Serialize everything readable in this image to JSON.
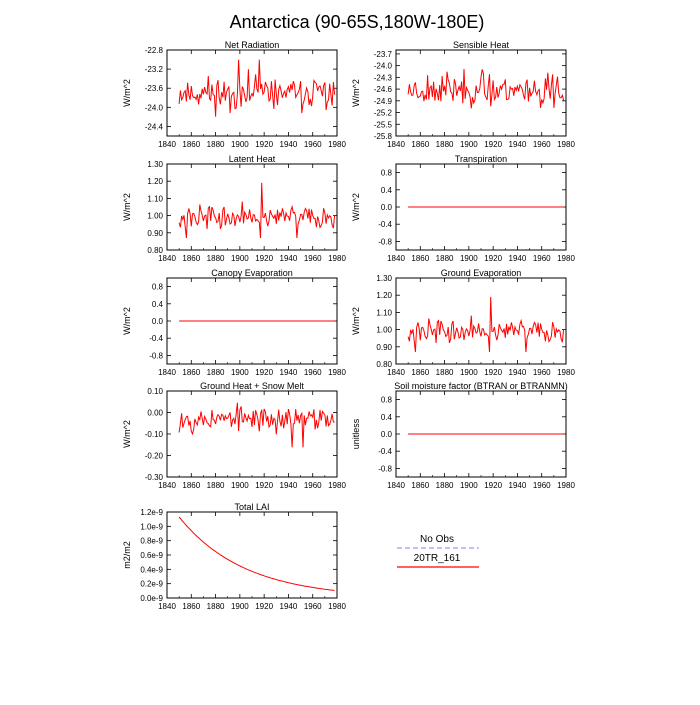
{
  "title": "Antarctica (90-65S,180W-180E)",
  "colors": {
    "model": "#ff0000",
    "obs": "#9999ff",
    "axis": "#000000"
  },
  "legend": {
    "obs_label": "No Obs",
    "model_label": "20TR_161"
  },
  "chart_data": [
    {
      "type": "line",
      "title": "Net Radiation",
      "ylabel": "W/m^2",
      "xlim": [
        1840,
        1980
      ],
      "ylim": [
        -24.6,
        -22.8
      ],
      "yticks": [
        -22.8,
        -23.2,
        -23.6,
        -24.0,
        -24.4
      ],
      "ytick_labels": [
        "-22.8",
        "-23.2",
        "-23.6",
        "-24.0",
        "-24.4"
      ],
      "xticks": [
        1840,
        1860,
        1880,
        1900,
        1920,
        1940,
        1960,
        1980
      ],
      "xtick_labels": [
        "1840",
        "1860",
        "1880",
        "1900",
        "1920",
        "1940",
        "1960",
        "1980"
      ],
      "series": [
        {
          "name": "20TR_161",
          "kind": "noise",
          "mean": -23.7,
          "amp": 0.3,
          "spike": 0.7,
          "seed": 11,
          "start": 1850,
          "end": 1978
        }
      ]
    },
    {
      "type": "line",
      "title": "Sensible Heat",
      "ylabel": "W/m^2",
      "xlim": [
        1840,
        1980
      ],
      "ylim": [
        -25.8,
        -23.6
      ],
      "yticks": [
        -23.7,
        -24.0,
        -24.3,
        -24.6,
        -24.9,
        -25.2,
        -25.5,
        -25.8
      ],
      "ytick_labels": [
        "-23.7",
        "-24.0",
        "-24.3",
        "-24.6",
        "-24.9",
        "-25.2",
        "-25.5",
        "-25.8"
      ],
      "xticks": [
        1840,
        1860,
        1880,
        1900,
        1920,
        1940,
        1960,
        1980
      ],
      "xtick_labels": [
        "1840",
        "1860",
        "1880",
        "1900",
        "1920",
        "1940",
        "1960",
        "1980"
      ],
      "series": [
        {
          "name": "20TR_161",
          "kind": "noise",
          "mean": -24.6,
          "amp": 0.35,
          "spike": 0.8,
          "seed": 23,
          "start": 1850,
          "end": 1978
        }
      ]
    },
    {
      "type": "line",
      "title": "Latent Heat",
      "ylabel": "W/m^2",
      "xlim": [
        1840,
        1980
      ],
      "ylim": [
        0.8,
        1.3
      ],
      "yticks": [
        0.8,
        0.9,
        1.0,
        1.1,
        1.2,
        1.3
      ],
      "ytick_labels": [
        "0.80",
        "0.90",
        "1.00",
        "1.10",
        "1.20",
        "1.30"
      ],
      "xticks": [
        1840,
        1860,
        1880,
        1900,
        1920,
        1940,
        1960,
        1980
      ],
      "xtick_labels": [
        "1840",
        "1860",
        "1880",
        "1900",
        "1920",
        "1940",
        "1960",
        "1980"
      ],
      "series": [
        {
          "name": "20TR_161",
          "kind": "noise",
          "mean": 0.99,
          "amp": 0.055,
          "spike": 0.2,
          "seed": 37,
          "start": 1850,
          "end": 1978
        }
      ]
    },
    {
      "type": "line",
      "title": "Transpiration",
      "ylabel": "W/m^2",
      "xlim": [
        1840,
        1980
      ],
      "ylim": [
        -1.0,
        1.0
      ],
      "yticks": [
        0.8,
        0.4,
        0.0,
        -0.4,
        -0.8
      ],
      "ytick_labels": [
        "0.8",
        "0.4",
        "0.0",
        "-0.4",
        "-0.8"
      ],
      "xticks": [
        1840,
        1860,
        1880,
        1900,
        1920,
        1940,
        1960,
        1980
      ],
      "xtick_labels": [
        "1840",
        "1860",
        "1880",
        "1900",
        "1920",
        "1940",
        "1960",
        "1980"
      ],
      "series": [
        {
          "name": "20TR_161",
          "kind": "const",
          "value": 0.0,
          "start": 1850,
          "end": 1978
        }
      ]
    },
    {
      "type": "line",
      "title": "Canopy Evaporation",
      "ylabel": "W/m^2",
      "xlim": [
        1840,
        1980
      ],
      "ylim": [
        -1.0,
        1.0
      ],
      "yticks": [
        0.8,
        0.4,
        0.0,
        -0.4,
        -0.8
      ],
      "ytick_labels": [
        "0.8",
        "0.4",
        "0.0",
        "-0.4",
        "-0.8"
      ],
      "xticks": [
        1840,
        1860,
        1880,
        1900,
        1920,
        1940,
        1960,
        1980
      ],
      "xtick_labels": [
        "1840",
        "1860",
        "1880",
        "1900",
        "1920",
        "1940",
        "1960",
        "1980"
      ],
      "series": [
        {
          "name": "20TR_161",
          "kind": "const",
          "value": 0.0,
          "start": 1850,
          "end": 1978
        }
      ]
    },
    {
      "type": "line",
      "title": "Ground Evaporation",
      "ylabel": "W/m^2",
      "xlim": [
        1840,
        1980
      ],
      "ylim": [
        0.8,
        1.3
      ],
      "yticks": [
        0.8,
        0.9,
        1.0,
        1.1,
        1.2,
        1.3
      ],
      "ytick_labels": [
        "0.80",
        "0.90",
        "1.00",
        "1.10",
        "1.20",
        "1.30"
      ],
      "xticks": [
        1840,
        1860,
        1880,
        1900,
        1920,
        1940,
        1960,
        1980
      ],
      "xtick_labels": [
        "1840",
        "1860",
        "1880",
        "1900",
        "1920",
        "1940",
        "1960",
        "1980"
      ],
      "series": [
        {
          "name": "20TR_161",
          "kind": "noise",
          "mean": 0.99,
          "amp": 0.055,
          "spike": 0.2,
          "seed": 37,
          "start": 1850,
          "end": 1978
        }
      ]
    },
    {
      "type": "line",
      "title": "Ground Heat + Snow Melt",
      "ylabel": "W/m^2",
      "xlim": [
        1840,
        1980
      ],
      "ylim": [
        -0.3,
        0.1
      ],
      "yticks": [
        0.1,
        0.0,
        -0.1,
        -0.2,
        -0.3
      ],
      "ytick_labels": [
        "0.10",
        "0.00",
        "-0.10",
        "-0.20",
        "-0.30"
      ],
      "xticks": [
        1840,
        1860,
        1880,
        1900,
        1920,
        1940,
        1960,
        1980
      ],
      "xtick_labels": [
        "1840",
        "1860",
        "1880",
        "1900",
        "1920",
        "1940",
        "1960",
        "1980"
      ],
      "series": [
        {
          "name": "20TR_161",
          "kind": "noise",
          "mean": -0.03,
          "amp": 0.05,
          "spike": 0.22,
          "seed": 53,
          "start": 1850,
          "end": 1978
        }
      ]
    },
    {
      "type": "line",
      "title": "Soil moisture factor (BTRAN or BTRANMN)",
      "ylabel": "unitless",
      "xlim": [
        1840,
        1980
      ],
      "ylim": [
        -1.0,
        1.0
      ],
      "yticks": [
        0.8,
        0.4,
        0.0,
        -0.4,
        -0.8
      ],
      "ytick_labels": [
        "0.8",
        "0.4",
        "0.0",
        "-0.4",
        "-0.8"
      ],
      "xticks": [
        1840,
        1860,
        1880,
        1900,
        1920,
        1940,
        1960,
        1980
      ],
      "xtick_labels": [
        "1840",
        "1860",
        "1880",
        "1900",
        "1920",
        "1940",
        "1960",
        "1980"
      ],
      "series": [
        {
          "name": "20TR_161",
          "kind": "const",
          "value": 0.0,
          "start": 1850,
          "end": 1978
        }
      ]
    },
    {
      "type": "line",
      "title": "Total LAI",
      "ylabel": "m2/m2",
      "xlim": [
        1840,
        1980
      ],
      "ylim": [
        0.0,
        1.2e-09
      ],
      "yticks": [
        1.2e-09,
        1e-09,
        8e-10,
        6e-10,
        4e-10,
        2e-10,
        0.0
      ],
      "ytick_labels": [
        "1.2e-9",
        "1.0e-9",
        "0.8e-9",
        "0.6e-9",
        "0.4e-9",
        "0.2e-9",
        "0.0e-9"
      ],
      "xticks": [
        1840,
        1860,
        1880,
        1900,
        1920,
        1940,
        1960,
        1980
      ],
      "xtick_labels": [
        "1840",
        "1860",
        "1880",
        "1900",
        "1920",
        "1940",
        "1960",
        "1980"
      ],
      "series": [
        {
          "name": "20TR_161",
          "kind": "decay",
          "y0": 1.13e-09,
          "tau": 54,
          "start": 1850,
          "end": 1978
        }
      ]
    }
  ]
}
